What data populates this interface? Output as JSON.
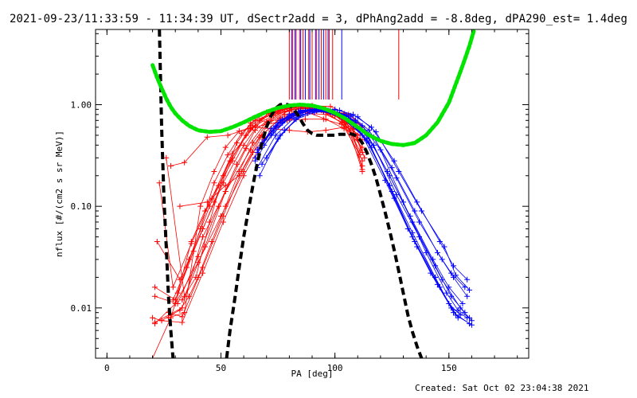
{
  "header": {
    "title": "2021-09-23/11:33:59 - 11:34:39 UT, dSectr2add = 3, dPhAng2add = -8.8deg, dPA290_est=  1.4deg"
  },
  "footer": {
    "created": "Created: Sat Oct 02 23:04:38 2021"
  },
  "chart_data": {
    "type": "line",
    "title": "2021-09-23/11:33:59 - 11:34:39 UT, dSectr2add = 3, dPhAng2add = -8.8deg, dPA290_est=  1.4deg",
    "xlabel": "PA [deg]",
    "ylabel": "nflux [#/(cm2 s sr MeV)]",
    "xlim": [
      -5,
      185
    ],
    "ylim": [
      0.0032,
      5.5
    ],
    "yscale": "log",
    "x_ticks": [
      {
        "value": 0,
        "label": "0"
      },
      {
        "value": 50,
        "label": "50"
      },
      {
        "value": 100,
        "label": "100"
      },
      {
        "value": 150,
        "label": "150"
      }
    ],
    "y_ticks": [
      {
        "value": 0.01,
        "label": "0.01"
      },
      {
        "value": 0.1,
        "label": "0.10"
      },
      {
        "value": 1,
        "label": "1.00"
      }
    ],
    "colors": {
      "red": "#ff0000",
      "blue": "#0000ff",
      "green": "#00e400",
      "black": "#000000"
    },
    "vertical_markers": [
      {
        "color": "#ff0000",
        "x": [
          80,
          81.5,
          83,
          84.5,
          86,
          88.5,
          90,
          92,
          94,
          96,
          97.5,
          99,
          128
        ]
      },
      {
        "color": "#0000ff",
        "x": [
          81,
          82.5,
          85,
          87,
          89,
          91.5,
          93,
          95,
          97,
          103
        ]
      }
    ],
    "green_curve": {
      "name": "",
      "x": [
        20,
        22,
        24,
        26,
        28,
        30,
        33,
        36,
        40,
        45,
        50,
        55,
        60,
        65,
        70,
        75,
        80,
        85,
        90,
        95,
        100,
        105,
        110,
        115,
        120,
        125,
        130,
        135,
        140,
        145,
        150,
        155,
        157,
        159,
        161
      ],
      "y": [
        2.45,
        1.85,
        1.45,
        1.15,
        0.95,
        0.82,
        0.7,
        0.62,
        0.56,
        0.54,
        0.55,
        0.6,
        0.67,
        0.76,
        0.85,
        0.93,
        0.98,
        1.0,
        0.98,
        0.92,
        0.83,
        0.72,
        0.6,
        0.5,
        0.44,
        0.41,
        0.4,
        0.42,
        0.5,
        0.67,
        1.05,
        2.1,
        2.8,
        3.8,
        5.4
      ]
    },
    "black_curve_left": {
      "name": "",
      "x": [
        23,
        24,
        25,
        26,
        27,
        28,
        29
      ],
      "y": [
        5.5,
        0.6,
        0.12,
        0.04,
        0.013,
        0.006,
        0.0032
      ]
    },
    "black_curve_main": {
      "name": "",
      "x": [
        52.5,
        54,
        56,
        58,
        60,
        62,
        64,
        66,
        68,
        70,
        72,
        74,
        76,
        78,
        80,
        82,
        84,
        86,
        88,
        90,
        92,
        94,
        96,
        98,
        100,
        102,
        104,
        106,
        108,
        110,
        112,
        114,
        116,
        118,
        120,
        122,
        124,
        126,
        128,
        130,
        132,
        134,
        136,
        138
      ],
      "y": [
        0.0032,
        0.006,
        0.012,
        0.025,
        0.05,
        0.09,
        0.16,
        0.27,
        0.42,
        0.6,
        0.78,
        0.92,
        1.0,
        1.02,
        0.99,
        0.9,
        0.78,
        0.65,
        0.56,
        0.52,
        0.5,
        0.5,
        0.5,
        0.5,
        0.5,
        0.51,
        0.51,
        0.52,
        0.51,
        0.48,
        0.42,
        0.34,
        0.26,
        0.19,
        0.13,
        0.088,
        0.058,
        0.037,
        0.023,
        0.014,
        0.0085,
        0.0058,
        0.0042,
        0.0032
      ]
    },
    "red_series": [
      {
        "x": [
          21,
          33,
          42,
          52,
          63,
          72,
          80,
          88,
          96,
          103,
          111
        ],
        "y": [
          0.0072,
          0.01,
          0.05,
          0.14,
          0.36,
          0.7,
          0.88,
          0.92,
          0.9,
          0.76,
          0.35
        ]
      },
      {
        "x": [
          21,
          30,
          40,
          50,
          60,
          68,
          76,
          84,
          92,
          100,
          108,
          113
        ],
        "y": [
          0.007,
          0.011,
          0.028,
          0.08,
          0.22,
          0.5,
          0.74,
          0.85,
          0.86,
          0.8,
          0.6,
          0.3
        ]
      },
      {
        "x": [
          21,
          31,
          40,
          49,
          57,
          65,
          73,
          81,
          89,
          97,
          105,
          112
        ],
        "y": [
          0.013,
          0.011,
          0.032,
          0.1,
          0.26,
          0.56,
          0.78,
          0.9,
          0.92,
          0.84,
          0.68,
          0.28
        ]
      },
      {
        "x": [
          21,
          30,
          38,
          47,
          55,
          63,
          71,
          79,
          87,
          95,
          103,
          111
        ],
        "y": [
          0.016,
          0.012,
          0.036,
          0.11,
          0.3,
          0.62,
          0.82,
          0.94,
          0.96,
          0.88,
          0.66,
          0.32
        ]
      },
      {
        "x": [
          22,
          32,
          42,
          51,
          60,
          68,
          76,
          84,
          92,
          100,
          108,
          112
        ],
        "y": [
          0.045,
          0.019,
          0.06,
          0.17,
          0.4,
          0.72,
          0.88,
          0.95,
          0.92,
          0.82,
          0.52,
          0.23
        ]
      },
      {
        "x": [
          23,
          29,
          37,
          46,
          55,
          65,
          75,
          85,
          95,
          105,
          112
        ],
        "y": [
          0.17,
          0.016,
          0.043,
          0.12,
          0.33,
          0.62,
          0.84,
          0.92,
          0.88,
          0.7,
          0.22
        ]
      },
      {
        "x": [
          26,
          34,
          43,
          52,
          61,
          70,
          78,
          86,
          94,
          102,
          110
        ],
        "y": [
          0.3,
          0.013,
          0.04,
          0.14,
          0.37,
          0.68,
          0.86,
          0.94,
          0.9,
          0.76,
          0.45
        ]
      },
      {
        "x": [
          20,
          28,
          36,
          45,
          54,
          63,
          71,
          79,
          87,
          95,
          103,
          112
        ],
        "y": [
          0.0032,
          0.008,
          0.03,
          0.1,
          0.28,
          0.58,
          0.82,
          0.92,
          0.93,
          0.86,
          0.66,
          0.38
        ]
      },
      {
        "x": [
          27,
          33,
          42,
          51,
          59,
          67,
          75,
          83,
          91,
          99,
          106,
          112
        ],
        "y": [
          0.009,
          0.0082,
          0.025,
          0.08,
          0.22,
          0.48,
          0.7,
          0.82,
          0.88,
          0.84,
          0.7,
          0.34
        ]
      },
      {
        "x": [
          24,
          33,
          42,
          51,
          60,
          69,
          78,
          87,
          96,
          104,
          112
        ],
        "y": [
          0.0075,
          0.0072,
          0.022,
          0.07,
          0.2,
          0.46,
          0.72,
          0.86,
          0.9,
          0.82,
          0.6
        ]
      },
      {
        "x": [
          28,
          34,
          44,
          53,
          62,
          70,
          79,
          87,
          95,
          103,
          111
        ],
        "y": [
          0.25,
          0.27,
          0.48,
          0.5,
          0.58,
          0.64,
          0.7,
          0.72,
          0.72,
          0.64,
          0.5
        ]
      },
      {
        "x": [
          32,
          44,
          52,
          58,
          64,
          72,
          80,
          88,
          96,
          104,
          112
        ],
        "y": [
          0.1,
          0.11,
          0.16,
          0.2,
          0.34,
          0.55,
          0.72,
          0.82,
          0.8,
          0.66,
          0.25
        ]
      },
      {
        "x": [
          27,
          34,
          41,
          47,
          52,
          58,
          64,
          72,
          80,
          88,
          96,
          104,
          112
        ],
        "y": [
          0.008,
          0.009,
          0.1,
          0.22,
          0.38,
          0.55,
          0.6,
          0.58,
          0.56,
          0.54,
          0.56,
          0.6,
          0.55
        ]
      },
      {
        "x": [
          29,
          35,
          41,
          47,
          53,
          59,
          65,
          72,
          80,
          88,
          96,
          104,
          112
        ],
        "y": [
          0.012,
          0.025,
          0.06,
          0.17,
          0.32,
          0.52,
          0.7,
          0.8,
          0.86,
          0.84,
          0.72,
          0.58,
          0.45
        ]
      },
      {
        "x": [
          31,
          37,
          43,
          49,
          55,
          61,
          67,
          74,
          82,
          90,
          98,
          106,
          112
        ],
        "y": [
          0.014,
          0.045,
          0.09,
          0.16,
          0.28,
          0.5,
          0.7,
          0.84,
          0.94,
          0.98,
          0.96,
          0.8,
          0.62
        ]
      },
      {
        "x": [
          33,
          39,
          45,
          51,
          57,
          63,
          70,
          77,
          84,
          92,
          100,
          108
        ],
        "y": [
          0.012,
          0.02,
          0.07,
          0.2,
          0.42,
          0.66,
          0.84,
          0.92,
          0.96,
          0.9,
          0.78,
          0.58
        ]
      },
      {
        "x": [
          20,
          24,
          28,
          32,
          36,
          40,
          46,
          52,
          58,
          64,
          70,
          78,
          86,
          94,
          102,
          110
        ],
        "y": [
          0.008,
          0.0075,
          0.0085,
          0.0095,
          0.013,
          0.02,
          0.045,
          0.1,
          0.22,
          0.42,
          0.64,
          0.8,
          0.88,
          0.88,
          0.76,
          0.5
        ]
      }
    ],
    "blue_series": [
      {
        "x": [
          65,
          72,
          80,
          87,
          95,
          103,
          112,
          122,
          132,
          142,
          151,
          158
        ],
        "y": [
          0.3,
          0.58,
          0.8,
          0.88,
          0.86,
          0.75,
          0.5,
          0.18,
          0.06,
          0.022,
          0.01,
          0.008
        ]
      },
      {
        "x": [
          66,
          74,
          82,
          90,
          98,
          106,
          114,
          124,
          134,
          144,
          152,
          159
        ],
        "y": [
          0.34,
          0.62,
          0.82,
          0.9,
          0.86,
          0.72,
          0.46,
          0.16,
          0.05,
          0.02,
          0.009,
          0.007
        ]
      },
      {
        "x": [
          67,
          75,
          83,
          91,
          99,
          107,
          115,
          125,
          135,
          145,
          153,
          160
        ],
        "y": [
          0.38,
          0.66,
          0.85,
          0.9,
          0.84,
          0.68,
          0.42,
          0.14,
          0.045,
          0.017,
          0.0085,
          0.0068
        ]
      },
      {
        "x": [
          68,
          76,
          84,
          92,
          100,
          108,
          116,
          126,
          136,
          146,
          154
        ],
        "y": [
          0.42,
          0.7,
          0.86,
          0.9,
          0.82,
          0.64,
          0.38,
          0.12,
          0.04,
          0.016,
          0.008
        ]
      },
      {
        "x": [
          69,
          77,
          85,
          93,
          101,
          109,
          117,
          127,
          137,
          147,
          155,
          160
        ],
        "y": [
          0.45,
          0.72,
          0.88,
          0.92,
          0.84,
          0.66,
          0.4,
          0.13,
          0.05,
          0.019,
          0.01,
          0.0075
        ]
      },
      {
        "x": [
          65,
          73,
          81,
          89,
          97,
          105,
          113,
          123,
          133,
          143,
          150,
          156
        ],
        "y": [
          0.28,
          0.55,
          0.78,
          0.88,
          0.88,
          0.78,
          0.55,
          0.22,
          0.08,
          0.03,
          0.016,
          0.011
        ]
      },
      {
        "x": [
          66,
          74,
          82,
          90,
          98,
          106,
          114,
          124,
          134,
          144,
          151,
          157
        ],
        "y": [
          0.24,
          0.5,
          0.74,
          0.86,
          0.86,
          0.76,
          0.52,
          0.2,
          0.07,
          0.026,
          0.013,
          0.009
        ]
      },
      {
        "x": [
          67,
          75,
          83,
          91,
          99,
          107,
          115,
          125,
          135,
          145,
          152,
          158
        ],
        "y": [
          0.2,
          0.46,
          0.72,
          0.84,
          0.86,
          0.78,
          0.56,
          0.24,
          0.09,
          0.035,
          0.02,
          0.013
        ]
      },
      {
        "x": [
          68,
          76,
          84,
          92,
          100,
          108,
          116,
          126,
          136,
          146,
          152,
          158
        ],
        "y": [
          0.26,
          0.5,
          0.76,
          0.88,
          0.9,
          0.8,
          0.6,
          0.28,
          0.11,
          0.045,
          0.026,
          0.019
        ]
      },
      {
        "x": [
          70,
          78,
          86,
          94,
          102,
          110,
          118,
          128,
          138,
          148,
          153,
          159
        ],
        "y": [
          0.3,
          0.56,
          0.8,
          0.9,
          0.88,
          0.76,
          0.54,
          0.22,
          0.09,
          0.04,
          0.021,
          0.015
        ]
      },
      {
        "x": [
          66,
          74,
          82,
          90,
          98,
          106,
          114,
          124,
          134,
          144,
          150,
          155
        ],
        "y": [
          0.36,
          0.6,
          0.8,
          0.88,
          0.84,
          0.7,
          0.44,
          0.16,
          0.055,
          0.02,
          0.011,
          0.0085
        ]
      },
      {
        "x": [
          72,
          80,
          88,
          96,
          104,
          112,
          120,
          130,
          140,
          149,
          154,
          159
        ],
        "y": [
          0.5,
          0.74,
          0.86,
          0.88,
          0.8,
          0.62,
          0.36,
          0.11,
          0.035,
          0.014,
          0.0095,
          0.008
        ]
      },
      {
        "x": [
          69,
          77,
          85,
          93,
          101,
          109,
          117,
          127,
          137,
          147,
          151,
          157
        ],
        "y": [
          0.4,
          0.66,
          0.84,
          0.9,
          0.84,
          0.7,
          0.48,
          0.19,
          0.07,
          0.03,
          0.022,
          0.016
        ]
      }
    ]
  }
}
